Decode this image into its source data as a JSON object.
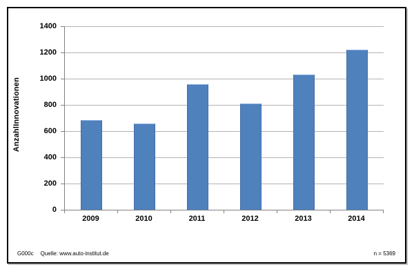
{
  "chart_data": {
    "type": "bar",
    "categories": [
      "2009",
      "2010",
      "2011",
      "2012",
      "2013",
      "2014"
    ],
    "values": [
      685,
      660,
      960,
      810,
      1030,
      1220
    ],
    "title": "",
    "xlabel": "",
    "ylabel": "AnzahlInnovationen",
    "ylim": [
      0,
      1400
    ],
    "yticks": [
      0,
      200,
      400,
      600,
      800,
      1000,
      1200,
      1400
    ],
    "grid": "horizontal-major",
    "legend": "none",
    "bar_color": "#4f81bd"
  },
  "footer": {
    "code": "G000c",
    "source": "Quelle: www.auto-institut.de",
    "sample_size": "n = 5369"
  },
  "colors": {
    "bar": "#4f81bd",
    "bar_edge": "#416ea6",
    "gridline": "#b3b3b3",
    "axis": "#808080",
    "frame": "#000000",
    "background": "#ffffff"
  }
}
